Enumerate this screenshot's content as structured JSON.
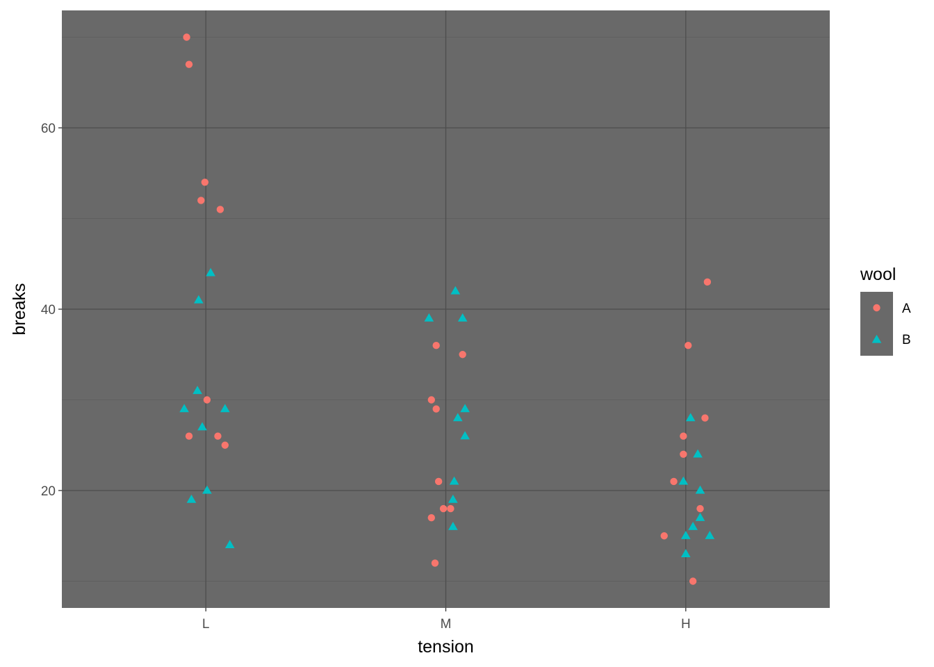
{
  "chart_data": {
    "type": "scatter",
    "xlabel": "tension",
    "ylabel": "breaks",
    "categories": [
      "L",
      "M",
      "H"
    ],
    "yticks": [
      20,
      40,
      60
    ],
    "ylim": [
      7.05,
      72.95
    ],
    "grid": true,
    "legend": {
      "title": "wool",
      "placement": "right",
      "entries": [
        "A",
        "B"
      ]
    },
    "series": [
      {
        "name": "A",
        "shape": "circle",
        "color": "#F8766D",
        "points": [
          {
            "x": -0.08,
            "y": 70
          },
          {
            "x": -0.07,
            "y": 67
          },
          {
            "x": -0.004,
            "y": 54
          },
          {
            "x": -0.02,
            "y": 52
          },
          {
            "x": 0.06,
            "y": 51
          },
          {
            "x": 0.005,
            "y": 30
          },
          {
            "x": -0.07,
            "y": 26
          },
          {
            "x": 0.05,
            "y": 26
          },
          {
            "x": 0.08,
            "y": 25
          },
          {
            "x": 0.96,
            "y": 36
          },
          {
            "x": 1.07,
            "y": 35
          },
          {
            "x": 0.94,
            "y": 30
          },
          {
            "x": 0.96,
            "y": 29
          },
          {
            "x": 0.97,
            "y": 21
          },
          {
            "x": 0.99,
            "y": 18
          },
          {
            "x": 1.02,
            "y": 18
          },
          {
            "x": 0.94,
            "y": 17
          },
          {
            "x": 0.955,
            "y": 12
          },
          {
            "x": 2.09,
            "y": 43
          },
          {
            "x": 2.01,
            "y": 36
          },
          {
            "x": 2.08,
            "y": 28
          },
          {
            "x": 1.99,
            "y": 26
          },
          {
            "x": 1.99,
            "y": 24
          },
          {
            "x": 1.95,
            "y": 21
          },
          {
            "x": 2.06,
            "y": 18
          },
          {
            "x": 1.91,
            "y": 15
          },
          {
            "x": 2.03,
            "y": 10
          }
        ]
      },
      {
        "name": "B",
        "shape": "triangle",
        "color": "#00BFC4",
        "points": [
          {
            "x": 0.02,
            "y": 44
          },
          {
            "x": -0.03,
            "y": 41
          },
          {
            "x": -0.035,
            "y": 31
          },
          {
            "x": -0.09,
            "y": 29
          },
          {
            "x": 0.08,
            "y": 29
          },
          {
            "x": -0.015,
            "y": 27
          },
          {
            "x": 0.005,
            "y": 20
          },
          {
            "x": -0.06,
            "y": 19
          },
          {
            "x": 0.1,
            "y": 14
          },
          {
            "x": 1.04,
            "y": 42
          },
          {
            "x": 0.93,
            "y": 39
          },
          {
            "x": 1.07,
            "y": 39
          },
          {
            "x": 1.08,
            "y": 29
          },
          {
            "x": 1.05,
            "y": 28
          },
          {
            "x": 1.08,
            "y": 26
          },
          {
            "x": 1.035,
            "y": 21
          },
          {
            "x": 1.03,
            "y": 19
          },
          {
            "x": 1.03,
            "y": 16
          },
          {
            "x": 2.02,
            "y": 28
          },
          {
            "x": 2.05,
            "y": 24
          },
          {
            "x": 1.99,
            "y": 21
          },
          {
            "x": 2.06,
            "y": 20
          },
          {
            "x": 2.06,
            "y": 17
          },
          {
            "x": 2.03,
            "y": 16
          },
          {
            "x": 2.0,
            "y": 15
          },
          {
            "x": 2.1,
            "y": 15
          },
          {
            "x": 2.0,
            "y": 13
          }
        ]
      }
    ]
  },
  "colors": {
    "panel_background": "#696969",
    "grid_major": "#4d4d4d",
    "grid_minor": "#5f5f5f"
  }
}
